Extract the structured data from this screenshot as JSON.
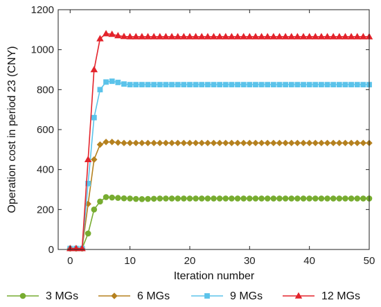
{
  "chart_data": {
    "type": "line",
    "xlabel": "Iteration number",
    "ylabel": "Operation cost in period 23 (CNY)",
    "xlim": [
      -2,
      50
    ],
    "ylim": [
      0,
      1200
    ],
    "xticks": [
      0,
      10,
      20,
      30,
      40,
      50
    ],
    "yticks": [
      0,
      200,
      400,
      600,
      800,
      1000,
      1200
    ],
    "grid": false,
    "legend_position": "bottom",
    "series": [
      {
        "name": "3  MGs",
        "color": "#77ac30",
        "marker": "circle",
        "x": [
          0,
          1,
          2,
          3,
          4,
          5,
          6,
          7,
          8,
          9,
          10,
          11,
          12,
          13,
          14,
          15,
          16,
          17,
          18,
          19,
          20,
          21,
          22,
          23,
          24,
          25,
          26,
          27,
          28,
          29,
          30,
          31,
          32,
          33,
          34,
          35,
          36,
          37,
          38,
          39,
          40,
          41,
          42,
          43,
          44,
          45,
          46,
          47,
          48,
          49,
          50
        ],
        "y": [
          5,
          5,
          5,
          80,
          200,
          240,
          262,
          260,
          258,
          256,
          255,
          253,
          252,
          253,
          254,
          255,
          255,
          255,
          255,
          255,
          255,
          255,
          255,
          255,
          255,
          255,
          255,
          255,
          255,
          255,
          255,
          255,
          255,
          255,
          255,
          255,
          255,
          255,
          255,
          255,
          255,
          255,
          255,
          255,
          255,
          255,
          255,
          255,
          255,
          255,
          255
        ]
      },
      {
        "name": "6  MGs",
        "color": "#b5811f",
        "marker": "diamond",
        "x": [
          0,
          1,
          2,
          3,
          4,
          5,
          6,
          7,
          8,
          9,
          10,
          11,
          12,
          13,
          14,
          15,
          16,
          17,
          18,
          19,
          20,
          21,
          22,
          23,
          24,
          25,
          26,
          27,
          28,
          29,
          30,
          31,
          32,
          33,
          34,
          35,
          36,
          37,
          38,
          39,
          40,
          41,
          42,
          43,
          44,
          45,
          46,
          47,
          48,
          49,
          50
        ],
        "y": [
          5,
          5,
          5,
          228,
          450,
          525,
          538,
          538,
          535,
          533,
          533,
          533,
          533,
          533,
          533,
          533,
          533,
          533,
          533,
          533,
          533,
          533,
          533,
          533,
          533,
          533,
          533,
          533,
          533,
          533,
          533,
          533,
          533,
          533,
          533,
          533,
          533,
          533,
          533,
          533,
          533,
          533,
          533,
          533,
          533,
          533,
          533,
          533,
          533,
          533,
          533
        ]
      },
      {
        "name": "9  MGs",
        "color": "#5bc3ea",
        "marker": "square",
        "x": [
          0,
          1,
          2,
          3,
          4,
          5,
          6,
          7,
          8,
          9,
          10,
          11,
          12,
          13,
          14,
          15,
          16,
          17,
          18,
          19,
          20,
          21,
          22,
          23,
          24,
          25,
          26,
          27,
          28,
          29,
          30,
          31,
          32,
          33,
          34,
          35,
          36,
          37,
          38,
          39,
          40,
          41,
          42,
          43,
          44,
          45,
          46,
          47,
          48,
          49,
          50
        ],
        "y": [
          5,
          5,
          5,
          330,
          660,
          800,
          838,
          842,
          836,
          828,
          825,
          825,
          825,
          825,
          825,
          825,
          825,
          825,
          825,
          825,
          825,
          825,
          825,
          825,
          825,
          825,
          825,
          825,
          825,
          825,
          825,
          825,
          825,
          825,
          825,
          825,
          825,
          825,
          825,
          825,
          825,
          825,
          825,
          825,
          825,
          825,
          825,
          825,
          825,
          825,
          825
        ]
      },
      {
        "name": "12 MGs",
        "color": "#e3232b",
        "marker": "triangle",
        "x": [
          0,
          1,
          2,
          3,
          4,
          5,
          6,
          7,
          8,
          9,
          10,
          11,
          12,
          13,
          14,
          15,
          16,
          17,
          18,
          19,
          20,
          21,
          22,
          23,
          24,
          25,
          26,
          27,
          28,
          29,
          30,
          31,
          32,
          33,
          34,
          35,
          36,
          37,
          38,
          39,
          40,
          41,
          42,
          43,
          44,
          45,
          46,
          47,
          48,
          49,
          50
        ],
        "y": [
          5,
          5,
          5,
          450,
          900,
          1055,
          1080,
          1077,
          1070,
          1066,
          1065,
          1065,
          1065,
          1065,
          1065,
          1065,
          1065,
          1065,
          1065,
          1065,
          1065,
          1065,
          1065,
          1065,
          1065,
          1065,
          1065,
          1065,
          1065,
          1065,
          1065,
          1065,
          1065,
          1065,
          1065,
          1065,
          1065,
          1065,
          1065,
          1065,
          1065,
          1065,
          1065,
          1065,
          1065,
          1065,
          1065,
          1065,
          1065,
          1065,
          1065
        ]
      }
    ]
  }
}
